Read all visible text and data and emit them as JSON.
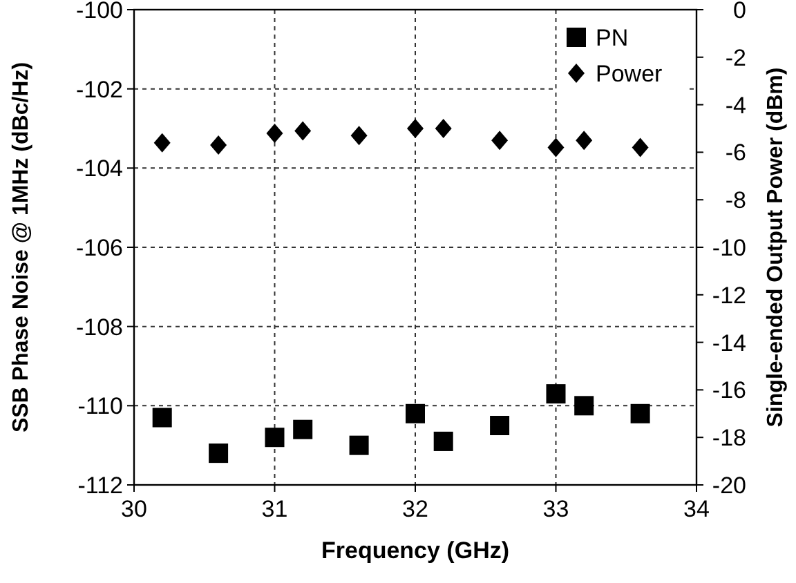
{
  "chart_data": {
    "type": "scatter",
    "xlabel": "Frequency (GHz)",
    "ylabel": "SSB Phase Noise @ 1MHz (dBc/Hz)",
    "y2label": "Single-ended Output Power (dBm)",
    "x": [
      30.2,
      30.6,
      31,
      31.2,
      31.6,
      32,
      32.2,
      32.6,
      33,
      33.2,
      33.6
    ],
    "series": [
      {
        "name": "PN",
        "color": "#000000",
        "marker": "square",
        "values": [
          -110.3,
          -111.2,
          -110.8,
          -110.6,
          -111.0,
          -110.2,
          -110.9,
          -110.5,
          -109.7,
          -110.0,
          -110.2
        ]
      },
      {
        "name": "Power",
        "color": "#000000",
        "marker": "diamond",
        "axis": "y2",
        "values": [
          -5.6,
          -5.7,
          -5.2,
          -5.1,
          -5.3,
          -5.0,
          -5.0,
          -5.5,
          -5.8,
          -5.5,
          -5.8
        ]
      }
    ],
    "xlim": [
      30,
      34
    ],
    "xticks": [
      30,
      31,
      32,
      33,
      34
    ],
    "ylim": [
      -112,
      -100
    ],
    "yticks": [
      -112,
      -110,
      -108,
      -106,
      -104,
      -102,
      -100
    ],
    "y2lim": [
      -20,
      0
    ],
    "y2ticks": [
      -20,
      -18,
      -16,
      -14,
      -12,
      -10,
      -8,
      -6,
      -4,
      -2,
      0
    ],
    "grid": true,
    "legend": "top right"
  }
}
